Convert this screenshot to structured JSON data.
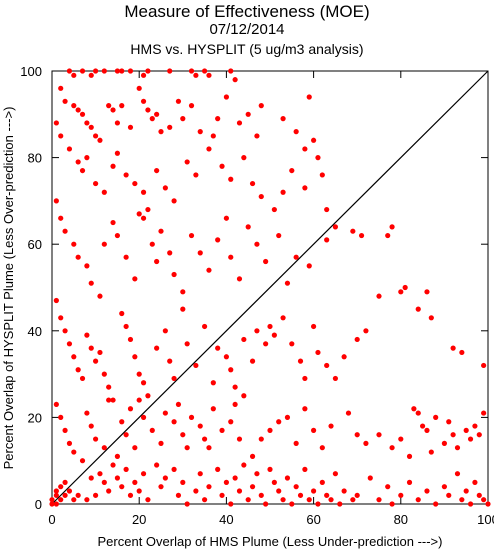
{
  "chart_data": {
    "type": "scatter",
    "title": "Measure of Effectiveness (MOE)",
    "subtitle_date": "07/12/2014",
    "subtitle_analysis": "HMS vs. HYSPLIT  (5 ug/m3 analysis)",
    "xlabel": "Percent Overlap of HMS Plume (Less Under-prediction --->)",
    "ylabel": "Percent Overlap of HYSPLIT Plume (Less Over-prediction --->)",
    "xlim": [
      0,
      100
    ],
    "ylim": [
      0,
      100
    ],
    "xticks": [
      0,
      20,
      40,
      60,
      80,
      100
    ],
    "yticks": [
      0,
      20,
      40,
      60,
      80,
      100
    ],
    "grid": false,
    "reference_line": {
      "from": [
        0,
        0
      ],
      "to": [
        100,
        100
      ],
      "color": "#000000"
    },
    "point_color": "#ff0000",
    "points": [
      [
        4,
        100
      ],
      [
        5,
        99
      ],
      [
        7,
        100
      ],
      [
        9,
        99
      ],
      [
        10,
        100
      ],
      [
        12,
        100
      ],
      [
        15,
        100
      ],
      [
        16,
        100
      ],
      [
        18,
        100
      ],
      [
        21,
        99
      ],
      [
        22,
        100
      ],
      [
        27,
        100
      ],
      [
        32,
        100
      ],
      [
        33,
        99
      ],
      [
        35,
        100
      ],
      [
        36,
        99
      ],
      [
        41,
        100
      ],
      [
        42,
        98
      ],
      [
        2,
        96
      ],
      [
        3,
        93
      ],
      [
        5,
        92
      ],
      [
        6,
        91
      ],
      [
        7,
        90
      ],
      [
        8,
        88
      ],
      [
        9,
        87
      ],
      [
        10,
        85
      ],
      [
        11,
        84
      ],
      [
        13,
        92
      ],
      [
        14,
        91
      ],
      [
        15,
        88
      ],
      [
        16,
        92
      ],
      [
        18,
        87
      ],
      [
        20,
        96
      ],
      [
        21,
        93
      ],
      [
        22,
        91
      ],
      [
        23,
        89
      ],
      [
        24,
        90
      ],
      [
        25,
        86
      ],
      [
        27,
        87
      ],
      [
        29,
        93
      ],
      [
        30,
        89
      ],
      [
        32,
        92
      ],
      [
        34,
        86
      ],
      [
        37,
        85
      ],
      [
        38,
        89
      ],
      [
        40,
        94
      ],
      [
        43,
        88
      ],
      [
        45,
        90
      ],
      [
        47,
        85
      ],
      [
        48,
        92
      ],
      [
        53,
        89
      ],
      [
        56,
        86
      ],
      [
        58,
        82
      ],
      [
        59,
        94
      ],
      [
        60,
        84
      ],
      [
        1,
        88
      ],
      [
        2,
        85
      ],
      [
        4,
        82
      ],
      [
        6,
        79
      ],
      [
        7,
        77
      ],
      [
        8,
        80
      ],
      [
        10,
        74
      ],
      [
        12,
        72
      ],
      [
        14,
        78
      ],
      [
        15,
        81
      ],
      [
        17,
        76
      ],
      [
        19,
        74
      ],
      [
        21,
        72
      ],
      [
        24,
        77
      ],
      [
        26,
        73
      ],
      [
        28,
        70
      ],
      [
        31,
        79
      ],
      [
        33,
        76
      ],
      [
        36,
        82
      ],
      [
        39,
        78
      ],
      [
        41,
        75
      ],
      [
        44,
        80
      ],
      [
        46,
        74
      ],
      [
        48,
        71
      ],
      [
        51,
        68
      ],
      [
        53,
        72
      ],
      [
        55,
        77
      ],
      [
        58,
        73
      ],
      [
        61,
        80
      ],
      [
        62,
        76
      ],
      [
        63,
        68
      ],
      [
        1,
        70
      ],
      [
        2,
        66
      ],
      [
        3,
        63
      ],
      [
        5,
        60
      ],
      [
        6,
        57
      ],
      [
        8,
        55
      ],
      [
        9,
        51
      ],
      [
        11,
        48
      ],
      [
        12,
        60
      ],
      [
        14,
        65
      ],
      [
        15,
        62
      ],
      [
        17,
        57
      ],
      [
        19,
        52
      ],
      [
        20,
        67
      ],
      [
        21,
        66
      ],
      [
        22,
        68
      ],
      [
        23,
        60
      ],
      [
        24,
        56
      ],
      [
        25,
        63
      ],
      [
        27,
        58
      ],
      [
        28,
        53
      ],
      [
        30,
        49
      ],
      [
        32,
        62
      ],
      [
        34,
        58
      ],
      [
        36,
        54
      ],
      [
        38,
        61
      ],
      [
        40,
        66
      ],
      [
        41,
        57
      ],
      [
        43,
        52
      ],
      [
        45,
        64
      ],
      [
        47,
        60
      ],
      [
        49,
        56
      ],
      [
        52,
        62
      ],
      [
        54,
        51
      ],
      [
        56,
        57
      ],
      [
        59,
        55
      ],
      [
        63,
        61
      ],
      [
        65,
        64
      ],
      [
        69,
        63
      ],
      [
        71,
        62
      ],
      [
        77,
        62
      ],
      [
        78,
        64
      ],
      [
        80,
        49
      ],
      [
        81,
        50
      ],
      [
        86,
        49
      ],
      [
        1,
        47
      ],
      [
        2,
        43
      ],
      [
        3,
        40
      ],
      [
        4,
        37
      ],
      [
        5,
        34
      ],
      [
        6,
        31
      ],
      [
        7,
        29
      ],
      [
        8,
        39
      ],
      [
        9,
        36
      ],
      [
        10,
        33
      ],
      [
        11,
        35
      ],
      [
        12,
        30
      ],
      [
        13,
        27
      ],
      [
        14,
        24
      ],
      [
        16,
        44
      ],
      [
        17,
        41
      ],
      [
        18,
        38
      ],
      [
        19,
        34
      ],
      [
        20,
        30
      ],
      [
        21,
        28
      ],
      [
        22,
        25
      ],
      [
        24,
        36
      ],
      [
        26,
        40
      ],
      [
        27,
        33
      ],
      [
        28,
        29
      ],
      [
        30,
        45
      ],
      [
        31,
        37
      ],
      [
        33,
        32
      ],
      [
        35,
        41
      ],
      [
        37,
        28
      ],
      [
        38,
        36
      ],
      [
        40,
        34
      ],
      [
        41,
        31
      ],
      [
        42,
        27
      ],
      [
        44,
        38
      ],
      [
        46,
        33
      ],
      [
        47,
        40
      ],
      [
        49,
        37
      ],
      [
        50,
        41
      ],
      [
        51,
        39
      ],
      [
        53,
        43
      ],
      [
        55,
        37
      ],
      [
        57,
        33
      ],
      [
        58,
        29
      ],
      [
        60,
        41
      ],
      [
        61,
        35
      ],
      [
        63,
        32
      ],
      [
        65,
        29
      ],
      [
        67,
        34
      ],
      [
        70,
        38
      ],
      [
        72,
        40
      ],
      [
        75,
        48
      ],
      [
        84,
        45
      ],
      [
        87,
        43
      ],
      [
        92,
        36
      ],
      [
        94,
        35
      ],
      [
        99,
        32
      ],
      [
        1,
        23
      ],
      [
        2,
        20
      ],
      [
        3,
        17
      ],
      [
        4,
        14
      ],
      [
        5,
        12
      ],
      [
        7,
        10
      ],
      [
        8,
        21
      ],
      [
        9,
        18
      ],
      [
        10,
        15
      ],
      [
        12,
        13
      ],
      [
        13,
        24
      ],
      [
        15,
        11
      ],
      [
        16,
        19
      ],
      [
        17,
        16
      ],
      [
        18,
        22
      ],
      [
        19,
        13
      ],
      [
        20,
        24
      ],
      [
        21,
        20
      ],
      [
        23,
        17
      ],
      [
        25,
        14
      ],
      [
        26,
        21
      ],
      [
        28,
        19
      ],
      [
        29,
        23
      ],
      [
        30,
        16
      ],
      [
        31,
        13
      ],
      [
        32,
        20
      ],
      [
        34,
        18
      ],
      [
        35,
        15
      ],
      [
        36,
        13
      ],
      [
        37,
        22
      ],
      [
        39,
        17
      ],
      [
        41,
        19
      ],
      [
        42,
        23
      ],
      [
        43,
        15
      ],
      [
        44,
        25
      ],
      [
        46,
        11
      ],
      [
        48,
        15
      ],
      [
        50,
        17
      ],
      [
        52,
        19
      ],
      [
        54,
        20
      ],
      [
        56,
        14
      ],
      [
        58,
        22
      ],
      [
        60,
        17
      ],
      [
        62,
        13
      ],
      [
        64,
        18
      ],
      [
        68,
        21
      ],
      [
        70,
        16
      ],
      [
        72,
        14
      ],
      [
        75,
        16
      ],
      [
        78,
        13
      ],
      [
        80,
        15
      ],
      [
        82,
        11
      ],
      [
        83,
        22
      ],
      [
        84,
        21
      ],
      [
        85,
        18
      ],
      [
        86,
        17
      ],
      [
        87,
        12
      ],
      [
        88,
        20
      ],
      [
        90,
        14
      ],
      [
        91,
        19
      ],
      [
        92,
        16
      ],
      [
        93,
        13
      ],
      [
        95,
        17
      ],
      [
        96,
        15
      ],
      [
        97,
        18
      ],
      [
        98,
        16
      ],
      [
        99,
        21
      ],
      [
        0,
        0
      ],
      [
        0,
        1
      ],
      [
        1,
        0
      ],
      [
        1,
        2
      ],
      [
        1,
        3
      ],
      [
        2,
        1
      ],
      [
        2,
        4
      ],
      [
        3,
        2
      ],
      [
        3,
        5
      ],
      [
        4,
        3
      ],
      [
        5,
        1
      ],
      [
        6,
        2
      ],
      [
        8,
        1
      ],
      [
        9,
        6
      ],
      [
        10,
        2
      ],
      [
        11,
        7
      ],
      [
        12,
        5
      ],
      [
        13,
        3
      ],
      [
        14,
        9
      ],
      [
        15,
        6
      ],
      [
        16,
        4
      ],
      [
        17,
        8
      ],
      [
        18,
        2
      ],
      [
        19,
        5
      ],
      [
        20,
        3
      ],
      [
        21,
        7
      ],
      [
        22,
        1
      ],
      [
        24,
        9
      ],
      [
        25,
        4
      ],
      [
        26,
        6
      ],
      [
        28,
        8
      ],
      [
        29,
        2
      ],
      [
        30,
        5
      ],
      [
        31,
        0
      ],
      [
        33,
        3
      ],
      [
        34,
        7
      ],
      [
        35,
        1
      ],
      [
        36,
        4
      ],
      [
        38,
        8
      ],
      [
        39,
        2
      ],
      [
        40,
        5
      ],
      [
        41,
        0
      ],
      [
        42,
        6
      ],
      [
        43,
        3
      ],
      [
        44,
        9
      ],
      [
        45,
        1
      ],
      [
        46,
        4
      ],
      [
        47,
        7
      ],
      [
        48,
        2
      ],
      [
        49,
        0
      ],
      [
        50,
        8
      ],
      [
        51,
        5
      ],
      [
        52,
        3
      ],
      [
        53,
        1
      ],
      [
        54,
        6
      ],
      [
        55,
        0
      ],
      [
        56,
        4
      ],
      [
        57,
        2
      ],
      [
        58,
        8
      ],
      [
        59,
        1
      ],
      [
        60,
        3
      ],
      [
        61,
        0
      ],
      [
        62,
        5
      ],
      [
        63,
        2
      ],
      [
        64,
        1
      ],
      [
        65,
        7
      ],
      [
        66,
        0
      ],
      [
        67,
        3
      ],
      [
        69,
        1
      ],
      [
        70,
        2
      ],
      [
        73,
        6
      ],
      [
        75,
        1
      ],
      [
        77,
        4
      ],
      [
        78,
        0
      ],
      [
        80,
        2
      ],
      [
        82,
        5
      ],
      [
        84,
        1
      ],
      [
        86,
        3
      ],
      [
        88,
        0
      ],
      [
        90,
        4
      ],
      [
        91,
        2
      ],
      [
        93,
        7
      ],
      [
        94,
        1
      ],
      [
        95,
        3
      ],
      [
        96,
        0
      ],
      [
        97,
        5
      ],
      [
        98,
        2
      ],
      [
        99,
        1
      ],
      [
        100,
        0
      ]
    ]
  }
}
